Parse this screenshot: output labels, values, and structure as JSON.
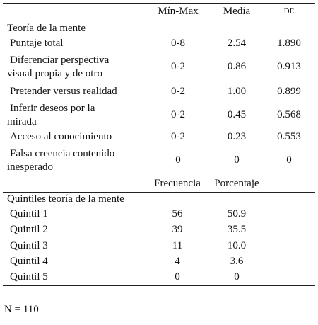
{
  "table1": {
    "header": [
      "Mín-Max",
      "Media",
      "DE"
    ],
    "section": "Teoría de la mente",
    "rows": [
      {
        "label": [
          "Puntaje total"
        ],
        "cells": [
          "0-8",
          "2.54",
          "1.890"
        ]
      },
      {
        "label": [
          "Diferenciar perspectiva",
          "visual propia y de otro"
        ],
        "cells": [
          "0-2",
          "0.86",
          "0.913"
        ]
      },
      {
        "label": [
          "Pretender versus realidad"
        ],
        "cells": [
          "0-2",
          "1.00",
          "0.899"
        ]
      },
      {
        "label": [
          "Inferir deseos por la",
          "mirada"
        ],
        "cells": [
          "0-2",
          "0.45",
          "0.568"
        ]
      },
      {
        "label": [
          "Acceso al conocimiento"
        ],
        "cells": [
          "0-2",
          "0.23",
          "0.553"
        ]
      },
      {
        "label": [
          "Falsa creencia contenido",
          "inesperado"
        ],
        "cells": [
          "0",
          "0",
          "0"
        ]
      }
    ]
  },
  "table2": {
    "header": [
      "Frecuencia",
      "Porcentaje"
    ],
    "section": "Quintiles teoría de la mente",
    "rows": [
      {
        "label": "Quintil 1",
        "cells": [
          "56",
          "50.9"
        ]
      },
      {
        "label": "Quintil 2",
        "cells": [
          "39",
          "35.5"
        ]
      },
      {
        "label": "Quintil 3",
        "cells": [
          "11",
          "10.0"
        ]
      },
      {
        "label": "Quintil 4",
        "cells": [
          "4",
          "3.6"
        ]
      },
      {
        "label": "Quintil 5",
        "cells": [
          "0",
          "0"
        ]
      }
    ]
  },
  "note": "N = 110"
}
